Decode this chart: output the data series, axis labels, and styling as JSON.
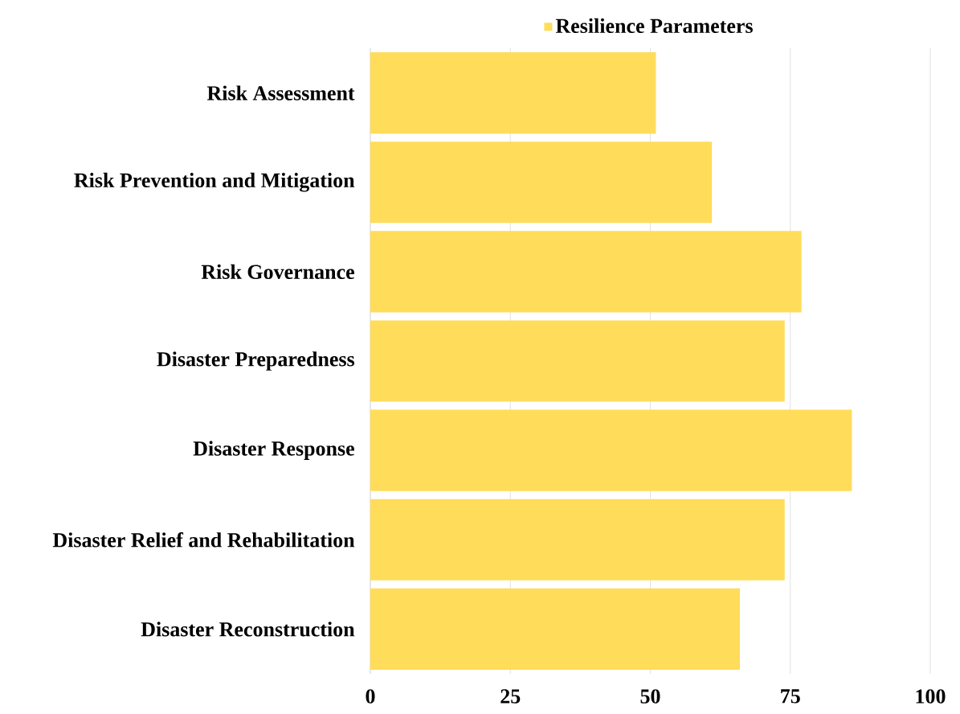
{
  "chart_data": {
    "type": "bar",
    "orientation": "horizontal",
    "categories": [
      "Risk Assessment",
      "Risk Prevention and Mitigation",
      "Risk Governance",
      "Disaster Preparedness",
      "Disaster Response",
      "Disaster Relief and Rehabilitation",
      "Disaster Reconstruction"
    ],
    "series": [
      {
        "name": "Resilience Parameters",
        "color": "#ffdc5a",
        "values": [
          51,
          61,
          77,
          74,
          86,
          74,
          66
        ]
      }
    ],
    "xlim": [
      0,
      100
    ],
    "xticks": [
      0,
      25,
      50,
      75,
      100
    ],
    "grid": "x",
    "legend": "top"
  }
}
